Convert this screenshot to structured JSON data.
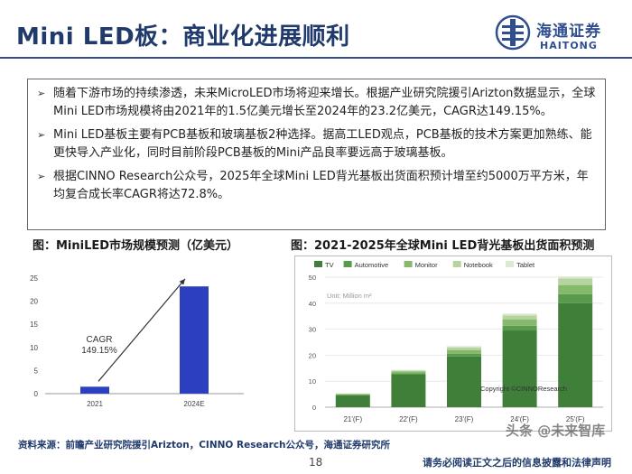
{
  "header": {
    "title": "Mini LED板：商业化进展顺利",
    "logo_cn": "海通证券",
    "logo_en": "HAITONG"
  },
  "bullets": [
    "随着下游市场的持续渗透，未来MicroLED市场将迎来增长。根据产业研究院援引Arizton数据显示，全球Mini LED市场规模将由2021年的1.5亿美元增长至2024年的23.2亿美元，CAGR达149.15%。",
    "Mini LED基板主要有PCB基板和玻璃基板2种选择。据高工LED观点，PCB基板的技术方案更加熟练、能更快导入产业化，同时目前阶段PCB基板的Mini产品良率要远高于玻璃基板。",
    "根据CINNO Research公众号，2025年全球Mini LED背光基板出货面积预计增至约5000万平方米，年均复合成长率CAGR将达72.8%。"
  ],
  "chart_data": [
    {
      "type": "bar",
      "title": "图：MiniLED市场规模预测（亿美元）",
      "categories": [
        "2021",
        "2024E"
      ],
      "values": [
        1.5,
        23.2
      ],
      "ylim": [
        0,
        25
      ],
      "yticks": [
        "0",
        "5",
        "10",
        "15",
        "20",
        "25"
      ],
      "annotation": "CAGR\n149.15%",
      "annotation_line1": "CAGR",
      "annotation_line2": "149.15%",
      "colors": {
        "bar": "#2b3fbf"
      }
    },
    {
      "type": "bar",
      "stacked": true,
      "title": "图：2021-2025年全球Mini LED背光基板出货面积预测",
      "unit_label": "Unit: Million m²",
      "categories": [
        "21'(F)",
        "22'(F)",
        "23'(F)",
        "24'(F)",
        "25'(F)"
      ],
      "series": [
        {
          "name": "TV",
          "values": [
            4.5,
            12.5,
            19.5,
            29.5,
            40.0
          ],
          "color": "#3f7f3a"
        },
        {
          "name": "Automotive",
          "values": [
            0.2,
            0.5,
            1.0,
            1.8,
            3.5
          ],
          "color": "#5a9a4c"
        },
        {
          "name": "Monitor",
          "values": [
            0.3,
            0.7,
            1.5,
            2.5,
            3.5
          ],
          "color": "#86b96c"
        },
        {
          "name": "Notebook",
          "values": [
            0.2,
            0.4,
            1.0,
            1.5,
            2.5
          ],
          "color": "#b5d4a0"
        },
        {
          "name": "Tablet",
          "values": [
            0.1,
            0.2,
            0.5,
            0.7,
            0.8
          ],
          "color": "#dbe9cf"
        }
      ],
      "ylim": [
        0,
        50
      ],
      "yticks": [
        "0",
        "10",
        "20",
        "30",
        "40",
        "50"
      ],
      "copyright": "Copyright ©CINNOResearch"
    }
  ],
  "footer": {
    "source": "资料来源：前瞻产业研究院援引Arizton，CINNO Research公众号，海通证券研究所",
    "page": "18",
    "disclaimer": "请务必阅读正文之后的信息披露和法律声明",
    "watermark": "头条 @未来智库"
  }
}
